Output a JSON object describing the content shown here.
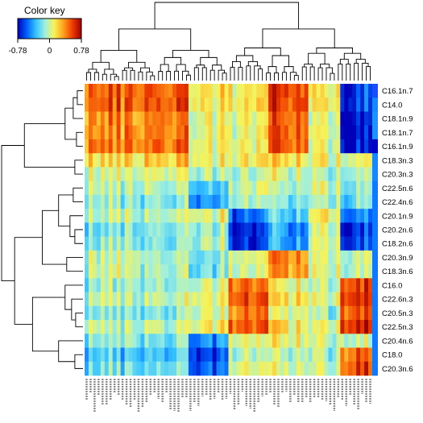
{
  "chart_data": {
    "type": "heatmap",
    "title": "",
    "color_key": {
      "title": "Color key",
      "min": -0.78,
      "mid": 0,
      "max": 0.78,
      "tick_labels": [
        "-0.78",
        "0",
        "0.78"
      ],
      "colors": [
        "#0000b8",
        "#0060ff",
        "#36c3ff",
        "#9ff0df",
        "#f6f35a",
        "#ffa31c",
        "#f03c00",
        "#9a0000"
      ]
    },
    "rows": [
      "C16.1n.7",
      "C14.0",
      "C18.1n.9",
      "C18.1n.7",
      "C16.1n.9",
      "C18.3n.3",
      "C20.3n.3",
      "C22.5n.6",
      "C22.4n.6",
      "C20.1n.9",
      "C20.2n.6",
      "C18.2n.6",
      "C20.3n.9",
      "C18.3n.6",
      "C16.0",
      "C22.6n.3",
      "C20.5n.3",
      "C22.5n.3",
      "C20.4n.6",
      "C18.0",
      "C20.3n.6"
    ],
    "column_count": 72,
    "column_labels_note": "column labels are printed vertically below the heatmap and are too small to read",
    "block_values": {
      "row_groups": [
        "C16.1n.7 / C14.0 / C18.1n.9 / C18.1n.7 / C16.1n.9",
        "C18.3n.3 / C20.3n.3",
        "C22.5n.6 / C22.4n.6",
        "C20.1n.9 / C20.2n.6 / C18.2n.6",
        "C20.3n.9 / C18.3n.6",
        "C16.0 / C22.6n.3 / C20.5n.3 / C22.5n.3",
        "C20.4n.6",
        "C18.0 / C20.3n.6"
      ],
      "column_groups": [
        "cols 1-14",
        "cols 15-26",
        "cols 27-36",
        "cols 37-46",
        "cols 47-56",
        "cols 57-64",
        "cols 65-72"
      ],
      "values": [
        [
          0.4,
          0.45,
          0.1,
          0.1,
          0.5,
          0.05,
          -0.7
        ],
        [
          0.1,
          0.15,
          0.05,
          0.05,
          0.1,
          0.0,
          0.0
        ],
        [
          -0.05,
          -0.05,
          -0.3,
          0.0,
          -0.05,
          0.0,
          -0.1
        ],
        [
          -0.1,
          -0.1,
          0.0,
          -0.6,
          -0.35,
          0.05,
          -0.55
        ],
        [
          0.05,
          0.0,
          -0.1,
          0.1,
          0.45,
          0.1,
          0.05
        ],
        [
          -0.05,
          -0.05,
          0.1,
          0.5,
          0.15,
          0.0,
          0.6
        ],
        [
          -0.1,
          -0.15,
          -0.4,
          0.05,
          0.1,
          0.0,
          0.0
        ],
        [
          -0.2,
          -0.2,
          -0.5,
          0.05,
          0.05,
          0.0,
          0.55
        ]
      ]
    }
  }
}
